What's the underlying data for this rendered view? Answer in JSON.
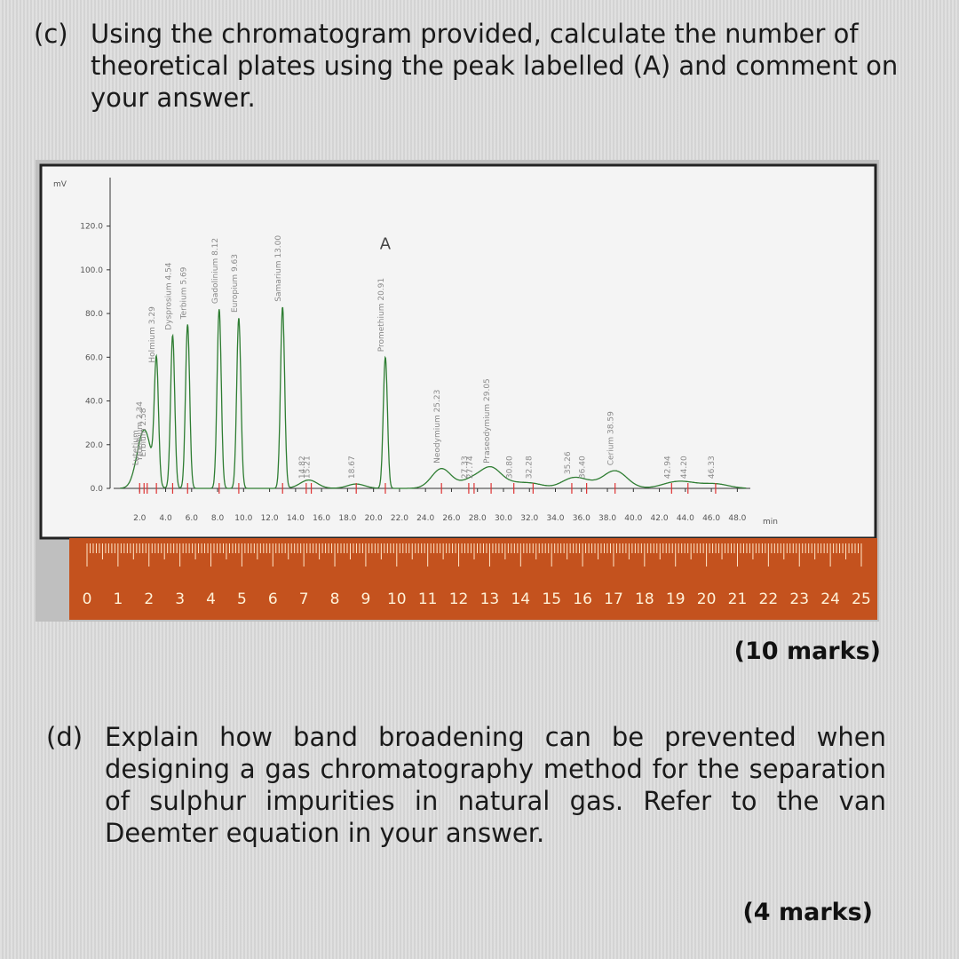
{
  "question_c": {
    "label": "(c)",
    "text": "Using the chromatogram provided, calculate the number of theoretical plates using the peak labelled (A) and comment on your answer.",
    "marks": "(10 marks)"
  },
  "question_d": {
    "label": "(d)",
    "text": "Explain how band broadening can be prevented when designing a gas chromatography method for the separation of sulphur impurities in natural gas. Refer to the van Deemter equation in your answer.",
    "marks": "(4 marks)"
  },
  "chart_data": {
    "type": "line",
    "ylabel": "mV",
    "xlabel": "min",
    "y_ticks": [
      "0.0",
      "20.0",
      "40.0",
      "60.0",
      "80.0",
      "100.0",
      "120.0"
    ],
    "x_ticks": [
      "2.0",
      "4.0",
      "6.0",
      "8.0",
      "10.0",
      "12.0",
      "14.0",
      "16.0",
      "18.0",
      "20.0",
      "22.0",
      "24.0",
      "26.0",
      "28.0",
      "30.0",
      "32.0",
      "34.0",
      "36.0",
      "38.0",
      "40.0",
      "42.0",
      "44.0",
      "46.0",
      "48.0"
    ],
    "xlim": [
      0,
      49
    ],
    "ylim": [
      0,
      130
    ],
    "peak_marker": "A",
    "peaks": [
      {
        "label": "Lutetium",
        "t": 2.0,
        "h": 8
      },
      {
        "label": "Ytterbium 2.34",
        "t": 2.34,
        "h": 10
      },
      {
        "label": "Erbium 2.58",
        "t": 2.58,
        "h": 12
      },
      {
        "label": "Holmium 3.29",
        "t": 3.29,
        "h": 55
      },
      {
        "label": "Dysprosium 4.54",
        "t": 4.54,
        "h": 70
      },
      {
        "label": "Terbium 5.69",
        "t": 5.69,
        "h": 75
      },
      {
        "label": "Gadolinium 8.12",
        "t": 8.12,
        "h": 82
      },
      {
        "label": "Europium 9.63",
        "t": 9.63,
        "h": 78
      },
      {
        "label": "Samarium 13.00",
        "t": 13.0,
        "h": 83
      },
      {
        "label": "14.82",
        "t": 14.82,
        "h": 2
      },
      {
        "label": "15.21",
        "t": 15.21,
        "h": 2
      },
      {
        "label": "18.67",
        "t": 18.67,
        "h": 2
      },
      {
        "label": "Promethium 20.91",
        "t": 20.91,
        "h": 60
      },
      {
        "label": "Neodymium 25.23",
        "t": 25.23,
        "h": 9
      },
      {
        "label": "27.33",
        "t": 27.33,
        "h": 2
      },
      {
        "label": "27.74",
        "t": 27.74,
        "h": 2
      },
      {
        "label": "Praseodymium 29.05",
        "t": 29.05,
        "h": 9
      },
      {
        "label": "30.80",
        "t": 30.8,
        "h": 2
      },
      {
        "label": "32.28",
        "t": 32.28,
        "h": 2
      },
      {
        "label": "35.26",
        "t": 35.26,
        "h": 4
      },
      {
        "label": "36.40",
        "t": 36.4,
        "h": 2
      },
      {
        "label": "Cerium 38.59",
        "t": 38.59,
        "h": 8
      },
      {
        "label": "42.94",
        "t": 42.94,
        "h": 2
      },
      {
        "label": "44.20",
        "t": 44.2,
        "h": 2
      },
      {
        "label": "46.33",
        "t": 46.33,
        "h": 2
      }
    ],
    "ruler_labels": [
      "0",
      "1",
      "2",
      "3",
      "4",
      "5",
      "6",
      "7",
      "8",
      "9",
      "10",
      "11",
      "12",
      "13",
      "14",
      "15",
      "16",
      "17",
      "18",
      "19",
      "20",
      "21",
      "22",
      "23",
      "24",
      "25"
    ]
  }
}
